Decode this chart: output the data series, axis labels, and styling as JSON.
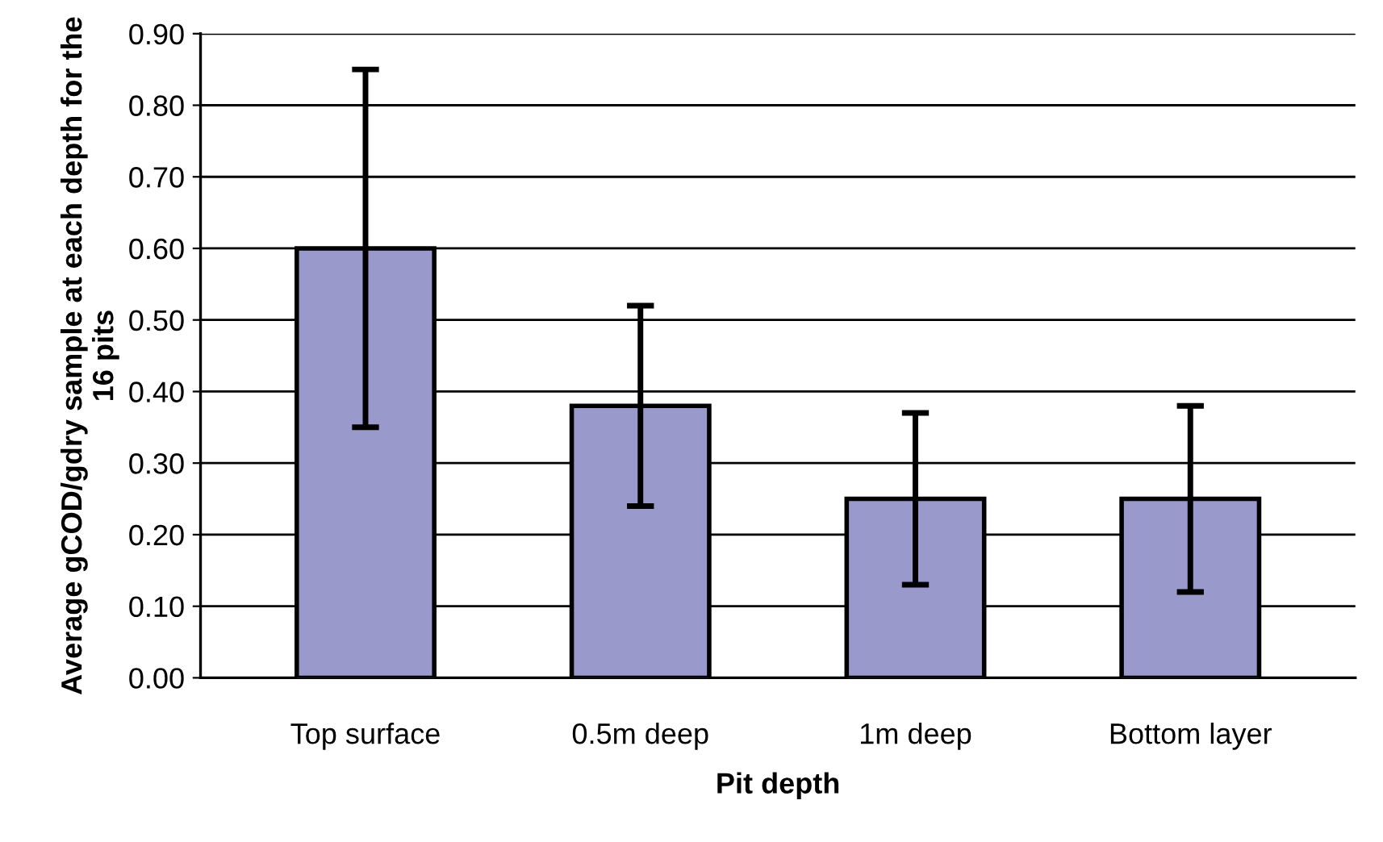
{
  "chart_data": {
    "type": "bar",
    "xlabel": "Pit depth",
    "ylabel": "Average gCOD/gdry sample at each depth for the 16 pits",
    "categories": [
      "Top surface",
      "0.5m deep",
      "1m deep",
      "Bottom layer"
    ],
    "values": [
      0.6,
      0.38,
      0.25,
      0.25
    ],
    "errors": [
      0.25,
      0.14,
      0.12,
      0.13
    ],
    "color": "#9999cc",
    "ylim": [
      0,
      0.9
    ],
    "yticks": [
      {
        "value": 0,
        "label": "0.00"
      },
      {
        "value": 0.1,
        "label": "0.10"
      },
      {
        "value": 0.2,
        "label": "0.20"
      },
      {
        "value": 0.3,
        "label": "0.30"
      },
      {
        "value": 0.4,
        "label": "0.40"
      },
      {
        "value": 0.5,
        "label": "0.50"
      },
      {
        "value": 0.6,
        "label": "0.60"
      },
      {
        "value": 0.7,
        "label": "0.70"
      },
      {
        "value": 0.8,
        "label": "0.80"
      },
      {
        "value": 0.9,
        "label": "0.90"
      }
    ],
    "grid": "y"
  }
}
